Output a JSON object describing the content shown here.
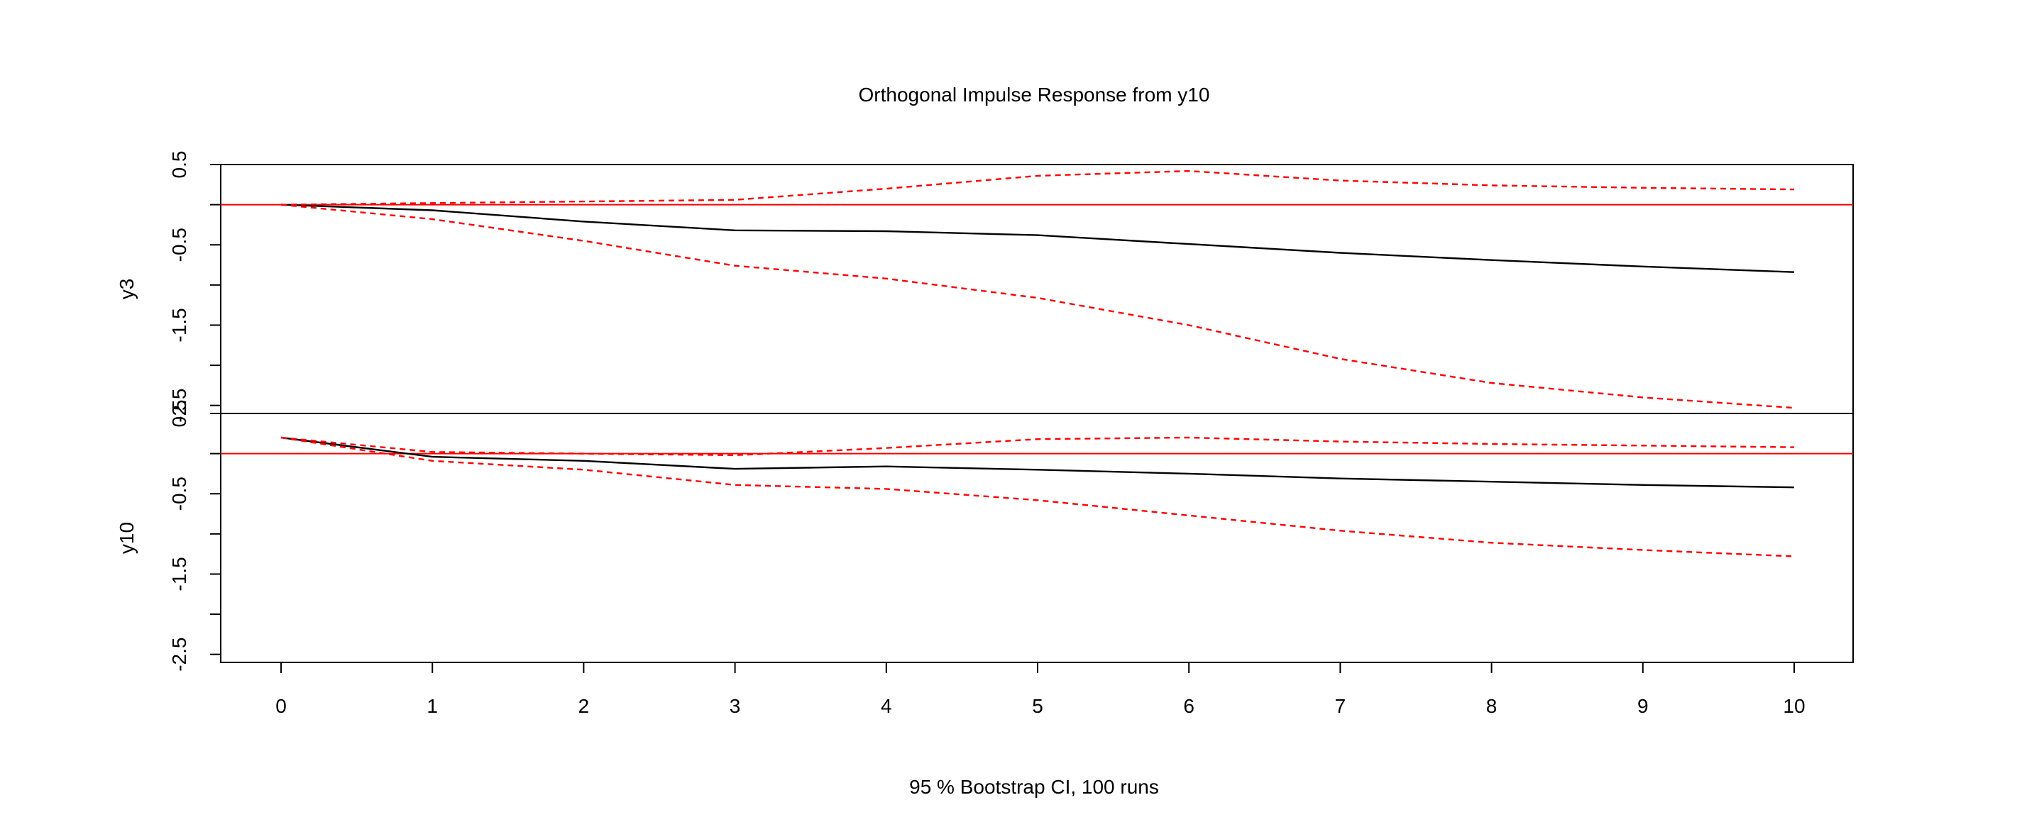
{
  "chart_data": {
    "type": "line",
    "title": "Orthogonal Impulse Response from y10",
    "xlabel": "95 % Bootstrap CI,  100 runs",
    "x": [
      0,
      1,
      2,
      3,
      4,
      5,
      6,
      7,
      8,
      9,
      10
    ],
    "x_ticks": [
      "0",
      "1",
      "2",
      "3",
      "4",
      "5",
      "6",
      "7",
      "8",
      "9",
      "10"
    ],
    "y_ticks": [
      "0.5",
      "-0.5",
      "-1.5",
      "-2.5"
    ],
    "grid": false,
    "panels": [
      {
        "ylabel": "y3",
        "ylim": [
          -2.6,
          0.5
        ],
        "series": [
          {
            "role": "irf",
            "values": [
              0.0,
              -0.07,
              -0.21,
              -0.32,
              -0.33,
              -0.38,
              -0.49,
              -0.6,
              -0.69,
              -0.77,
              -0.84
            ],
            "color": "#000000",
            "dash": "solid"
          },
          {
            "role": "upper",
            "values": [
              0.0,
              0.02,
              0.04,
              0.06,
              0.2,
              0.36,
              0.42,
              0.3,
              0.24,
              0.21,
              0.19
            ],
            "color": "#ff0000",
            "dash": "dashed"
          },
          {
            "role": "lower",
            "values": [
              0.0,
              -0.18,
              -0.45,
              -0.76,
              -0.92,
              -1.16,
              -1.5,
              -1.92,
              -2.22,
              -2.4,
              -2.53
            ],
            "color": "#ff0000",
            "dash": "dashed"
          }
        ],
        "reference_line": {
          "y": 0,
          "color": "#ff0000"
        }
      },
      {
        "ylabel": "y10",
        "ylim": [
          -2.6,
          0.5
        ],
        "series": [
          {
            "role": "irf",
            "values": [
              0.2,
              -0.04,
              -0.09,
              -0.19,
              -0.16,
              -0.2,
              -0.25,
              -0.31,
              -0.35,
              -0.39,
              -0.42
            ],
            "color": "#000000",
            "dash": "solid"
          },
          {
            "role": "upper",
            "values": [
              0.2,
              0.02,
              0.0,
              -0.02,
              0.07,
              0.18,
              0.2,
              0.15,
              0.12,
              0.1,
              0.08
            ],
            "color": "#ff0000",
            "dash": "dashed"
          },
          {
            "role": "lower",
            "values": [
              0.2,
              -0.09,
              -0.2,
              -0.39,
              -0.44,
              -0.58,
              -0.77,
              -0.96,
              -1.11,
              -1.2,
              -1.28
            ],
            "color": "#ff0000",
            "dash": "dashed"
          }
        ],
        "reference_line": {
          "y": 0,
          "color": "#ff0000"
        }
      }
    ]
  }
}
